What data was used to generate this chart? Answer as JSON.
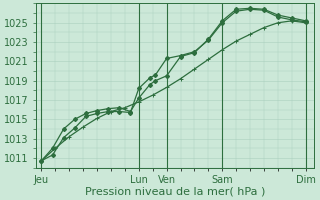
{
  "xlabel": "Pression niveau de la mer( hPa )",
  "background_color": "#cce8d8",
  "grid_color": "#aacfbe",
  "line_color": "#2d6e3e",
  "vline_color": "#2d6e3e",
  "ylim": [
    1010.0,
    1027.0
  ],
  "yticks": [
    1011,
    1013,
    1015,
    1017,
    1019,
    1021,
    1023,
    1025
  ],
  "x_day_labels": [
    "Jeu",
    "Lun",
    "Ven",
    "Sam",
    "Dim"
  ],
  "x_day_positions": [
    0,
    3.5,
    4.5,
    6.5,
    9.5
  ],
  "xlim": [
    -0.2,
    9.8
  ],
  "line1_x": [
    0.0,
    0.4,
    0.8,
    1.2,
    1.6,
    2.0,
    2.4,
    2.8,
    3.2,
    3.5,
    3.9,
    4.1,
    4.5,
    5.0,
    5.5,
    6.0,
    6.5,
    7.0,
    7.5,
    8.0,
    8.5,
    9.0,
    9.5
  ],
  "line1_y": [
    1010.7,
    1011.3,
    1013.1,
    1014.1,
    1015.3,
    1015.6,
    1015.8,
    1015.8,
    1015.7,
    1018.2,
    1019.3,
    1019.6,
    1021.3,
    1021.6,
    1022.0,
    1023.2,
    1025.0,
    1026.2,
    1026.4,
    1026.3,
    1025.6,
    1025.3,
    1025.1
  ],
  "line2_x": [
    0.0,
    0.4,
    0.8,
    1.2,
    1.6,
    2.0,
    2.4,
    2.8,
    3.2,
    3.5,
    3.9,
    4.1,
    4.5,
    5.0,
    5.5,
    6.0,
    6.5,
    7.0,
    7.5,
    8.0,
    8.5,
    9.0,
    9.5
  ],
  "line2_y": [
    1010.7,
    1012.0,
    1014.0,
    1015.0,
    1015.6,
    1015.9,
    1016.1,
    1016.2,
    1015.8,
    1017.2,
    1018.6,
    1019.0,
    1019.5,
    1021.5,
    1021.9,
    1023.3,
    1025.2,
    1026.4,
    1026.5,
    1026.4,
    1025.8,
    1025.5,
    1025.2
  ],
  "line3_x": [
    0.0,
    0.5,
    1.0,
    1.5,
    2.0,
    2.5,
    3.0,
    3.5,
    4.0,
    4.5,
    5.0,
    5.5,
    6.0,
    6.5,
    7.0,
    7.5,
    8.0,
    8.5,
    9.0,
    9.5
  ],
  "line3_y": [
    1010.7,
    1012.0,
    1013.2,
    1014.2,
    1015.1,
    1015.8,
    1016.2,
    1016.8,
    1017.5,
    1018.3,
    1019.2,
    1020.2,
    1021.2,
    1022.2,
    1023.1,
    1023.8,
    1024.5,
    1025.0,
    1025.2,
    1025.0
  ],
  "marker_size": 2.0,
  "linewidth": 0.9,
  "font_size_label": 8,
  "font_size_tick": 7
}
